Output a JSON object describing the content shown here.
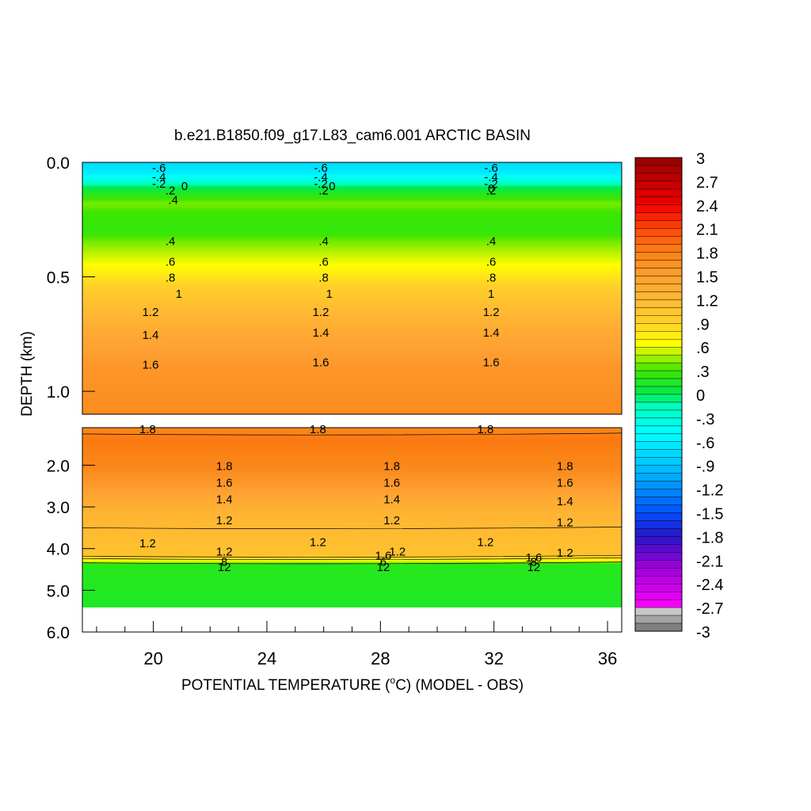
{
  "chart_data": {
    "type": "heatmap",
    "title": "b.e21.B1850.f09_g17.L83_cam6.001 ARCTIC BASIN",
    "xlabel": "POTENTIAL TEMPERATURE (",
    "xlabel_sup": "o",
    "xlabel_tail": "C) (MODEL - OBS)",
    "ylabel": "DEPTH (km)",
    "xlim": [
      17.5,
      36.5
    ],
    "x_ticks": [
      {
        "value": 20,
        "label": "20"
      },
      {
        "value": 24,
        "label": "24"
      },
      {
        "value": 28,
        "label": "28"
      },
      {
        "value": 32,
        "label": "32"
      },
      {
        "value": 36,
        "label": "36"
      }
    ],
    "upper_panel": {
      "ylim": [
        0.0,
        1.1
      ],
      "y_ticks": [
        {
          "value": 0.0,
          "label": "0.0"
        },
        {
          "value": 0.5,
          "label": "0.5"
        },
        {
          "value": 1.0,
          "label": "1.0"
        }
      ],
      "profile": [
        {
          "depth": 0.0,
          "value": -0.75
        },
        {
          "depth": 0.05,
          "value": -0.6
        },
        {
          "depth": 0.07,
          "value": -0.4
        },
        {
          "depth": 0.09,
          "value": -0.2
        },
        {
          "depth": 0.11,
          "value": 0.0
        },
        {
          "depth": 0.14,
          "value": 0.2
        },
        {
          "depth": 0.18,
          "value": 0.4
        },
        {
          "depth": 0.22,
          "value": 0.3
        },
        {
          "depth": 0.3,
          "value": 0.25
        },
        {
          "depth": 0.35,
          "value": 0.4
        },
        {
          "depth": 0.43,
          "value": 0.6
        },
        {
          "depth": 0.5,
          "value": 0.8
        },
        {
          "depth": 0.57,
          "value": 1.0
        },
        {
          "depth": 0.65,
          "value": 1.2
        },
        {
          "depth": 0.75,
          "value": 1.4
        },
        {
          "depth": 0.9,
          "value": 1.6
        },
        {
          "depth": 1.1,
          "value": 1.7
        }
      ],
      "contour_labels": [
        {
          "x": 20.2,
          "depth": 0.02,
          "text": "-.6"
        },
        {
          "x": 25.9,
          "depth": 0.02,
          "text": "-.6"
        },
        {
          "x": 31.9,
          "depth": 0.02,
          "text": "-.6"
        },
        {
          "x": 20.2,
          "depth": 0.06,
          "text": "-.4"
        },
        {
          "x": 25.9,
          "depth": 0.06,
          "text": "-.4"
        },
        {
          "x": 31.9,
          "depth": 0.06,
          "text": "-.4"
        },
        {
          "x": 20.2,
          "depth": 0.09,
          "text": "-.2"
        },
        {
          "x": 25.9,
          "depth": 0.09,
          "text": "-.2"
        },
        {
          "x": 31.9,
          "depth": 0.09,
          "text": "-.2"
        },
        {
          "x": 21.1,
          "depth": 0.1,
          "text": "0"
        },
        {
          "x": 26.3,
          "depth": 0.1,
          "text": "0"
        },
        {
          "x": 31.9,
          "depth": 0.11,
          "text": "0"
        },
        {
          "x": 20.6,
          "depth": 0.12,
          "text": ".2"
        },
        {
          "x": 26.0,
          "depth": 0.12,
          "text": ".2"
        },
        {
          "x": 31.9,
          "depth": 0.12,
          "text": ".2"
        },
        {
          "x": 20.7,
          "depth": 0.16,
          "text": ".4"
        },
        {
          "x": 20.6,
          "depth": 0.34,
          "text": ".4"
        },
        {
          "x": 26.0,
          "depth": 0.34,
          "text": ".4"
        },
        {
          "x": 31.9,
          "depth": 0.34,
          "text": ".4"
        },
        {
          "x": 20.6,
          "depth": 0.43,
          "text": ".6"
        },
        {
          "x": 26.0,
          "depth": 0.43,
          "text": ".6"
        },
        {
          "x": 31.9,
          "depth": 0.43,
          "text": ".6"
        },
        {
          "x": 20.6,
          "depth": 0.5,
          "text": ".8"
        },
        {
          "x": 26.0,
          "depth": 0.5,
          "text": ".8"
        },
        {
          "x": 31.9,
          "depth": 0.5,
          "text": ".8"
        },
        {
          "x": 20.9,
          "depth": 0.57,
          "text": "1"
        },
        {
          "x": 26.2,
          "depth": 0.57,
          "text": "1"
        },
        {
          "x": 31.9,
          "depth": 0.57,
          "text": "1"
        },
        {
          "x": 19.9,
          "depth": 0.65,
          "text": "1.2"
        },
        {
          "x": 25.9,
          "depth": 0.65,
          "text": "1.2"
        },
        {
          "x": 31.9,
          "depth": 0.65,
          "text": "1.2"
        },
        {
          "x": 19.9,
          "depth": 0.75,
          "text": "1.4"
        },
        {
          "x": 25.9,
          "depth": 0.74,
          "text": "1.4"
        },
        {
          "x": 31.9,
          "depth": 0.74,
          "text": "1.4"
        },
        {
          "x": 19.9,
          "depth": 0.88,
          "text": "1.6"
        },
        {
          "x": 25.9,
          "depth": 0.87,
          "text": "1.6"
        },
        {
          "x": 31.9,
          "depth": 0.87,
          "text": "1.6"
        }
      ]
    },
    "lower_panel": {
      "ylim": [
        1.1,
        6.0
      ],
      "y_ticks": [
        {
          "value": 2.0,
          "label": "2.0"
        },
        {
          "value": 3.0,
          "label": "3.0"
        },
        {
          "value": 4.0,
          "label": "4.0"
        },
        {
          "value": 5.0,
          "label": "5.0"
        },
        {
          "value": 6.0,
          "label": "6.0"
        }
      ],
      "profile": [
        {
          "depth": 1.1,
          "value": 1.75
        },
        {
          "depth": 1.4,
          "value": 1.85
        },
        {
          "depth": 1.7,
          "value": 1.8
        },
        {
          "depth": 2.0,
          "value": 1.75
        },
        {
          "depth": 2.4,
          "value": 1.6
        },
        {
          "depth": 2.8,
          "value": 1.4
        },
        {
          "depth": 3.2,
          "value": 1.25
        },
        {
          "depth": 3.8,
          "value": 1.15
        },
        {
          "depth": 4.15,
          "value": 1.1
        },
        {
          "depth": 4.3,
          "value": 0.6
        },
        {
          "depth": 4.38,
          "value": 0.2
        },
        {
          "depth": 5.4,
          "value": 0.15
        }
      ],
      "no_data_from": 5.4,
      "contour_labels": [
        {
          "x": 19.8,
          "depth": 1.12,
          "text": "1.8"
        },
        {
          "x": 25.8,
          "depth": 1.12,
          "text": "1.8"
        },
        {
          "x": 31.7,
          "depth": 1.12,
          "text": "1.8"
        },
        {
          "x": 22.5,
          "depth": 2.0,
          "text": "1.8"
        },
        {
          "x": 28.4,
          "depth": 2.0,
          "text": "1.8"
        },
        {
          "x": 34.5,
          "depth": 2.0,
          "text": "1.8"
        },
        {
          "x": 22.5,
          "depth": 2.4,
          "text": "1.6"
        },
        {
          "x": 28.4,
          "depth": 2.4,
          "text": "1.6"
        },
        {
          "x": 34.5,
          "depth": 2.4,
          "text": "1.6"
        },
        {
          "x": 22.5,
          "depth": 2.8,
          "text": "1.4"
        },
        {
          "x": 28.4,
          "depth": 2.8,
          "text": "1.4"
        },
        {
          "x": 34.5,
          "depth": 2.85,
          "text": "1.4"
        },
        {
          "x": 22.5,
          "depth": 3.3,
          "text": "1.2"
        },
        {
          "x": 28.4,
          "depth": 3.3,
          "text": "1.2"
        },
        {
          "x": 34.5,
          "depth": 3.35,
          "text": "1.2"
        },
        {
          "x": 19.8,
          "depth": 3.85,
          "text": "1.2"
        },
        {
          "x": 25.8,
          "depth": 3.83,
          "text": "1.2"
        },
        {
          "x": 31.7,
          "depth": 3.83,
          "text": "1.2"
        },
        {
          "x": 22.5,
          "depth": 4.05,
          "text": "1.2"
        },
        {
          "x": 28.6,
          "depth": 4.05,
          "text": "1.2"
        },
        {
          "x": 34.5,
          "depth": 4.08,
          "text": "1.2"
        },
        {
          "x": 28.1,
          "depth": 4.15,
          "text": "1.6"
        },
        {
          "x": 33.4,
          "depth": 4.2,
          "text": "1.6"
        },
        {
          "x": 22.5,
          "depth": 4.3,
          "text": "8"
        },
        {
          "x": 28.1,
          "depth": 4.3,
          "text": "6"
        },
        {
          "x": 33.4,
          "depth": 4.3,
          "text": "8"
        },
        {
          "x": 22.5,
          "depth": 4.42,
          "text": "12"
        },
        {
          "x": 28.1,
          "depth": 4.42,
          "text": "12"
        },
        {
          "x": 33.4,
          "depth": 4.42,
          "text": "12"
        }
      ]
    },
    "colorbar": {
      "min": -3.0,
      "max": 3.0,
      "step": 0.1,
      "labels": [
        {
          "value": 3,
          "label": "3"
        },
        {
          "value": 2.7,
          "label": "2.7"
        },
        {
          "value": 2.4,
          "label": "2.4"
        },
        {
          "value": 2.1,
          "label": "2.1"
        },
        {
          "value": 1.8,
          "label": "1.8"
        },
        {
          "value": 1.5,
          "label": "1.5"
        },
        {
          "value": 1.2,
          "label": "1.2"
        },
        {
          "value": 0.9,
          "label": ".9"
        },
        {
          "value": 0.6,
          "label": ".6"
        },
        {
          "value": 0.3,
          "label": ".3"
        },
        {
          "value": 0,
          "label": "0"
        },
        {
          "value": -0.3,
          "label": "-.3"
        },
        {
          "value": -0.6,
          "label": "-.6"
        },
        {
          "value": -0.9,
          "label": "-.9"
        },
        {
          "value": -1.2,
          "label": "-1.2"
        },
        {
          "value": -1.5,
          "label": "-1.5"
        },
        {
          "value": -1.8,
          "label": "-1.8"
        },
        {
          "value": -2.1,
          "label": "-2.1"
        },
        {
          "value": -2.4,
          "label": "-2.4"
        },
        {
          "value": -2.7,
          "label": "-2.7"
        },
        {
          "value": -3,
          "label": "-3"
        }
      ]
    }
  }
}
